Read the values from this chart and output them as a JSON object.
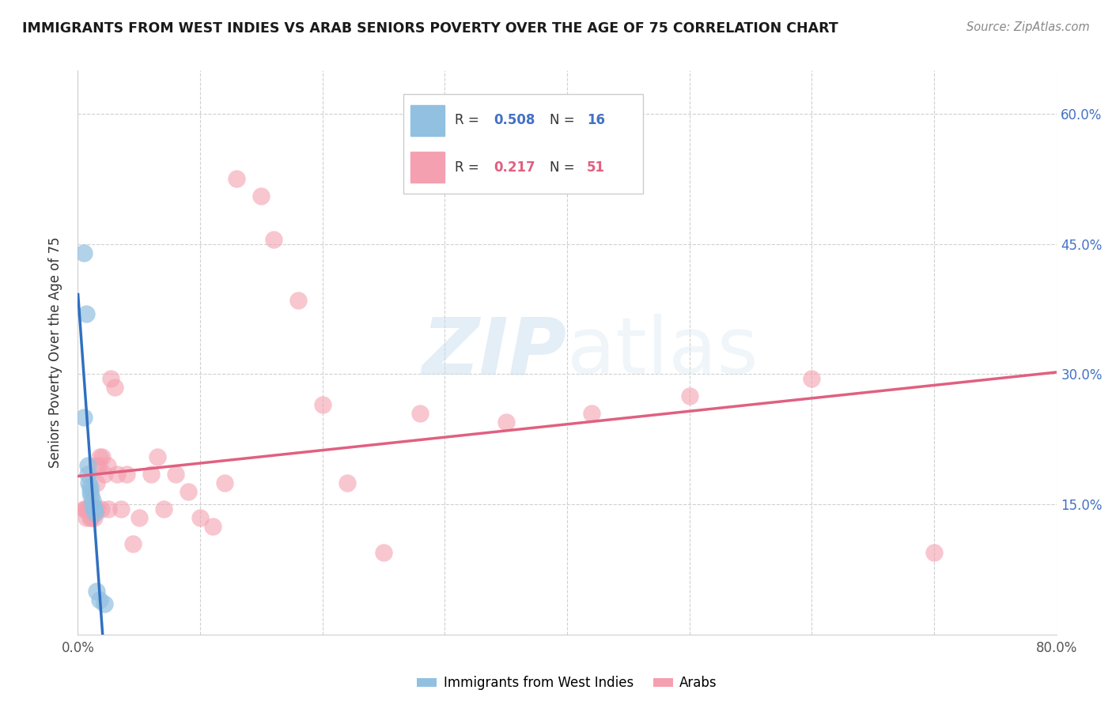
{
  "title": "IMMIGRANTS FROM WEST INDIES VS ARAB SENIORS POVERTY OVER THE AGE OF 75 CORRELATION CHART",
  "source": "Source: ZipAtlas.com",
  "ylabel": "Seniors Poverty Over the Age of 75",
  "watermark_zip": "ZIP",
  "watermark_atlas": "atlas",
  "blue_color": "#92c0e0",
  "pink_color": "#f4a0b0",
  "blue_line_color": "#3070c0",
  "pink_line_color": "#e06080",
  "dash_color": "#a0b8d0",
  "legend_blue_label_r": "R = ",
  "legend_blue_val_r": "0.508",
  "legend_blue_label_n": "  N = ",
  "legend_blue_val_n": "16",
  "legend_pink_label_r": "R =  ",
  "legend_pink_val_r": "0.217",
  "legend_pink_label_n": "  N = ",
  "legend_pink_val_n": "51",
  "text_color": "#4472c4",
  "axis_label_color": "#333333",
  "tick_color": "#555555",
  "grid_color": "#d0d0d0",
  "xlim": [
    0.0,
    0.8
  ],
  "ylim": [
    0.0,
    0.65
  ],
  "xtick_positions": [
    0.0,
    0.1,
    0.2,
    0.3,
    0.4,
    0.5,
    0.6,
    0.7,
    0.8
  ],
  "ytick_positions": [
    0.0,
    0.15,
    0.3,
    0.45,
    0.6
  ],
  "west_indies_x": [
    0.005,
    0.005,
    0.007,
    0.008,
    0.008,
    0.009,
    0.01,
    0.01,
    0.011,
    0.012,
    0.012,
    0.013,
    0.014,
    0.015,
    0.018,
    0.022
  ],
  "west_indies_y": [
    0.44,
    0.25,
    0.37,
    0.195,
    0.185,
    0.175,
    0.17,
    0.165,
    0.16,
    0.155,
    0.148,
    0.145,
    0.14,
    0.05,
    0.04,
    0.035
  ],
  "arab_x": [
    0.005,
    0.006,
    0.007,
    0.007,
    0.008,
    0.009,
    0.01,
    0.01,
    0.011,
    0.012,
    0.013,
    0.013,
    0.014,
    0.015,
    0.015,
    0.016,
    0.017,
    0.018,
    0.019,
    0.02,
    0.022,
    0.024,
    0.025,
    0.027,
    0.03,
    0.032,
    0.035,
    0.04,
    0.045,
    0.05,
    0.06,
    0.065,
    0.07,
    0.08,
    0.09,
    0.1,
    0.11,
    0.12,
    0.13,
    0.15,
    0.16,
    0.18,
    0.2,
    0.22,
    0.25,
    0.28,
    0.35,
    0.42,
    0.5,
    0.6,
    0.7
  ],
  "arab_y": [
    0.145,
    0.145,
    0.145,
    0.135,
    0.145,
    0.145,
    0.145,
    0.135,
    0.135,
    0.145,
    0.145,
    0.135,
    0.145,
    0.195,
    0.175,
    0.145,
    0.195,
    0.205,
    0.145,
    0.205,
    0.185,
    0.195,
    0.145,
    0.295,
    0.285,
    0.185,
    0.145,
    0.185,
    0.105,
    0.135,
    0.185,
    0.205,
    0.145,
    0.185,
    0.165,
    0.135,
    0.125,
    0.175,
    0.525,
    0.505,
    0.455,
    0.385,
    0.265,
    0.175,
    0.095,
    0.255,
    0.245,
    0.255,
    0.275,
    0.295,
    0.095
  ]
}
